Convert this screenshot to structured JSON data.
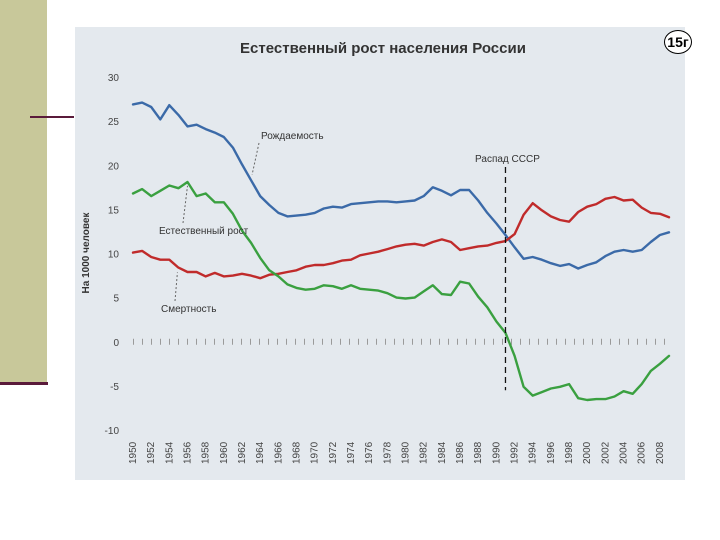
{
  "slide": {
    "badge": "15г",
    "colors": {
      "sidebar": "#c8c89a",
      "accent_line": "#5a1a3a",
      "panel": "#e4e9ee"
    }
  },
  "chart_data": {
    "type": "line",
    "title": "Естественный рост населения России",
    "xlabel": "",
    "ylabel": "На 1000 человек",
    "ylim": [
      -10,
      30
    ],
    "yticks": [
      30,
      25,
      20,
      15,
      10,
      5,
      0,
      -5,
      -10
    ],
    "x": [
      1950,
      1951,
      1952,
      1953,
      1954,
      1955,
      1956,
      1957,
      1958,
      1959,
      1960,
      1961,
      1962,
      1963,
      1964,
      1965,
      1966,
      1967,
      1968,
      1969,
      1970,
      1971,
      1972,
      1973,
      1974,
      1975,
      1976,
      1977,
      1978,
      1979,
      1980,
      1981,
      1982,
      1983,
      1984,
      1985,
      1986,
      1987,
      1988,
      1989,
      1990,
      1991,
      1992,
      1993,
      1994,
      1995,
      1996,
      1997,
      1998,
      1999,
      2000,
      2001,
      2002,
      2003,
      2004,
      2005,
      2006,
      2007,
      2008,
      2009
    ],
    "xtick_labels": [
      "1950",
      "1952",
      "1954",
      "1956",
      "1958",
      "1960",
      "1962",
      "1964",
      "1966",
      "1968",
      "1970",
      "1972",
      "1974",
      "1976",
      "1978",
      "1980",
      "1982",
      "1984",
      "1986",
      "1988",
      "1990",
      "1992",
      "1994",
      "1996",
      "1998",
      "2000",
      "2002",
      "2004",
      "2006",
      "2008"
    ],
    "series": [
      {
        "name": "Рождаемость",
        "color": "#3b6aa8",
        "values": [
          26.9,
          27.1,
          26.6,
          25.2,
          26.8,
          25.7,
          24.4,
          24.6,
          24.1,
          23.7,
          23.2,
          22.0,
          20.1,
          18.3,
          16.5,
          15.5,
          14.6,
          14.2,
          14.3,
          14.4,
          14.6,
          15.1,
          15.3,
          15.2,
          15.6,
          15.7,
          15.8,
          15.9,
          15.9,
          15.8,
          15.9,
          16.0,
          16.5,
          17.5,
          17.1,
          16.6,
          17.2,
          17.2,
          16.0,
          14.6,
          13.4,
          12.1,
          10.7,
          9.4,
          9.6,
          9.3,
          8.9,
          8.6,
          8.8,
          8.3,
          8.7,
          9.0,
          9.7,
          10.2,
          10.4,
          10.2,
          10.4,
          11.3,
          12.1,
          12.4
        ]
      },
      {
        "name": "Смертность",
        "color": "#c02b2b",
        "values": [
          10.1,
          10.3,
          9.6,
          9.3,
          9.3,
          8.4,
          7.9,
          7.9,
          7.4,
          7.8,
          7.4,
          7.5,
          7.7,
          7.5,
          7.2,
          7.6,
          7.7,
          7.9,
          8.1,
          8.5,
          8.7,
          8.7,
          8.9,
          9.2,
          9.3,
          9.8,
          10.0,
          10.2,
          10.5,
          10.8,
          11.0,
          11.1,
          10.9,
          11.3,
          11.6,
          11.3,
          10.4,
          10.6,
          10.8,
          10.9,
          11.2,
          11.4,
          12.2,
          14.4,
          15.7,
          14.9,
          14.2,
          13.8,
          13.6,
          14.7,
          15.3,
          15.6,
          16.2,
          16.4,
          16.0,
          16.1,
          15.2,
          14.6,
          14.5,
          14.1
        ]
      },
      {
        "name": "Естественный рост",
        "color": "#3aa040",
        "values": [
          16.8,
          17.3,
          16.5,
          17.1,
          17.7,
          17.4,
          18.1,
          16.5,
          16.8,
          15.8,
          15.8,
          14.5,
          12.6,
          11.2,
          9.5,
          8.1,
          7.4,
          6.5,
          6.1,
          5.9,
          6.0,
          6.4,
          6.3,
          6.0,
          6.4,
          6.0,
          5.9,
          5.8,
          5.5,
          5.0,
          4.9,
          5.0,
          5.7,
          6.4,
          5.4,
          5.3,
          6.8,
          6.6,
          5.1,
          3.9,
          2.3,
          1.0,
          -1.6,
          -5.1,
          -6.1,
          -5.7,
          -5.3,
          -5.1,
          -4.8,
          -6.4,
          -6.6,
          -6.5,
          -6.5,
          -6.2,
          -5.6,
          -5.9,
          -4.8,
          -3.3,
          -2.5,
          -1.6
        ]
      }
    ],
    "annotations": [
      {
        "text": "Рождаемость",
        "series": "Рождаемость"
      },
      {
        "text": "Естественный рост",
        "series": "Естественный рост"
      },
      {
        "text": "Смертность",
        "series": "Смертность"
      },
      {
        "text": "Распад СССР",
        "x": 1991
      }
    ],
    "grid": false,
    "legend": "none"
  }
}
